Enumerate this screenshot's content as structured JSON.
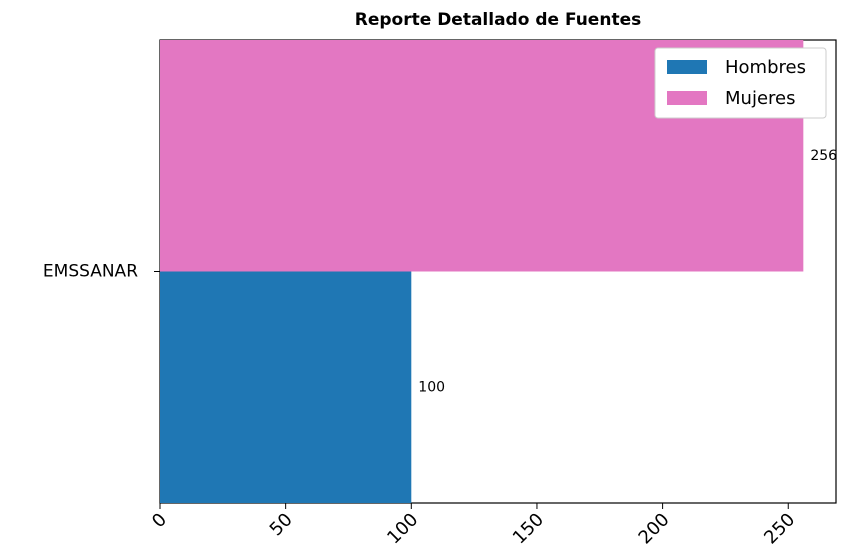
{
  "chart_data": {
    "type": "barh",
    "title": "Reporte Detallado de Fuentes",
    "categories": [
      "EMSSANAR"
    ],
    "series": [
      {
        "name": "Hombres",
        "color": "#1f77b4",
        "values": [
          100
        ]
      },
      {
        "name": "Mujeres",
        "color": "#e377c2",
        "values": [
          256
        ]
      }
    ],
    "xlim": [
      0,
      269
    ],
    "xticks": [
      0,
      50,
      100,
      150,
      200,
      250
    ],
    "legend": "upper right",
    "grid": false
  }
}
